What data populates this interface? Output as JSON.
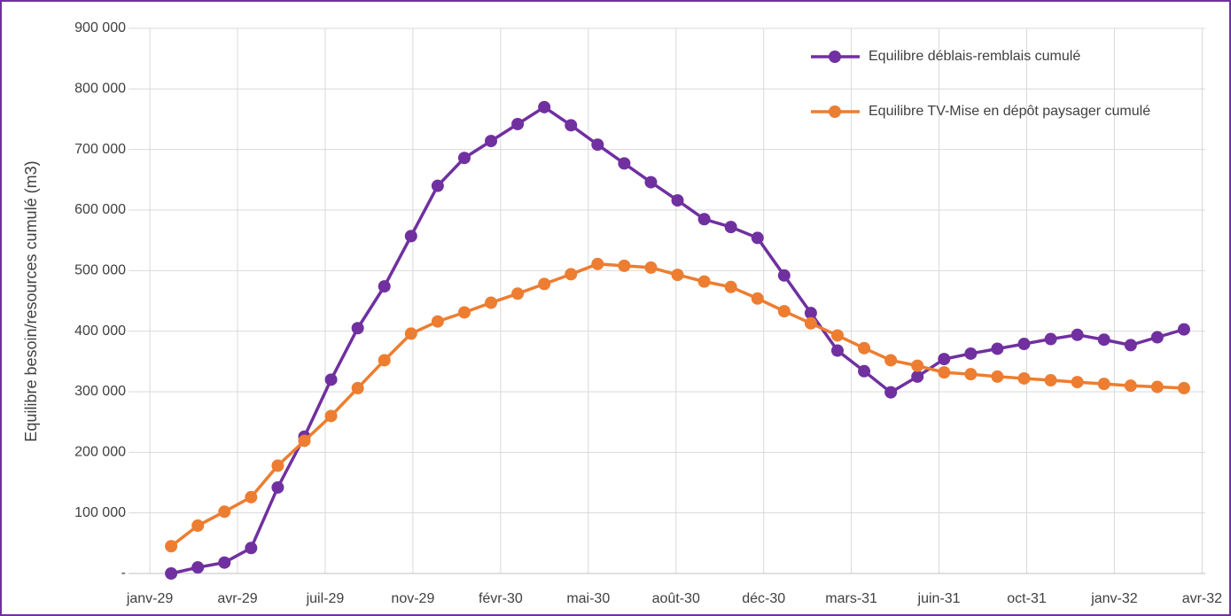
{
  "chart_data": {
    "type": "line",
    "y_label": "Equilibre besoin/resources  cumulé (m3)",
    "x": [
      1,
      2,
      3,
      4,
      5,
      6,
      7,
      8,
      9,
      10,
      11,
      12,
      13,
      14,
      15,
      16,
      17,
      18,
      19,
      20,
      21,
      22,
      23,
      24,
      25,
      26,
      27,
      28,
      29,
      30,
      31,
      32,
      33,
      34,
      35,
      36,
      37,
      38,
      39
    ],
    "series": [
      {
        "name": "Equilibre déblais-remblais cumulé",
        "color": "#7030a0",
        "values": [
          0,
          10000,
          18000,
          42000,
          142000,
          226000,
          320000,
          405000,
          474000,
          557000,
          640000,
          686000,
          714000,
          742000,
          770000,
          740000,
          708000,
          677000,
          646000,
          616000,
          585000,
          572000,
          554000,
          492000,
          430000,
          368000,
          334000,
          299000,
          325000,
          354000,
          363000,
          371000,
          379000,
          387000,
          394000,
          386000,
          377000,
          390000,
          403000
        ]
      },
      {
        "name": "Equilibre TV-Mise en dépôt paysager cumulé",
        "color": "#ed7d31",
        "values": [
          45000,
          79000,
          102000,
          126000,
          178000,
          219000,
          260000,
          306000,
          352000,
          396000,
          416000,
          431000,
          447000,
          462000,
          478000,
          494000,
          511000,
          508000,
          505000,
          493000,
          482000,
          473000,
          454000,
          433000,
          413000,
          393000,
          372000,
          352000,
          343000,
          332000,
          329000,
          325000,
          322000,
          319000,
          316000,
          313000,
          310000,
          308000,
          306000
        ]
      }
    ],
    "xlim": [
      -0.6,
      39.8
    ],
    "xticks": [
      {
        "value": 0.2,
        "label": "janv-29"
      },
      {
        "value": 3.49,
        "label": "avr-29"
      },
      {
        "value": 6.78,
        "label": "juil-29"
      },
      {
        "value": 10.07,
        "label": "nov-29"
      },
      {
        "value": 13.36,
        "label": "févr-30"
      },
      {
        "value": 16.65,
        "label": "mai-30"
      },
      {
        "value": 19.94,
        "label": "août-30"
      },
      {
        "value": 23.23,
        "label": "déc-30"
      },
      {
        "value": 26.52,
        "label": "mars-31"
      },
      {
        "value": 29.81,
        "label": "juin-31"
      },
      {
        "value": 33.1,
        "label": "oct-31"
      },
      {
        "value": 36.39,
        "label": "janv-32"
      },
      {
        "value": 39.68,
        "label": "avr-32"
      }
    ],
    "ylim": [
      0,
      900000
    ],
    "yticks": [
      {
        "value": 0,
        "label": "-"
      },
      {
        "value": 100000,
        "label": "100 000"
      },
      {
        "value": 200000,
        "label": "200 000"
      },
      {
        "value": 300000,
        "label": "300 000"
      },
      {
        "value": 400000,
        "label": "400 000"
      },
      {
        "value": 500000,
        "label": "500 000"
      },
      {
        "value": 600000,
        "label": "600 000"
      },
      {
        "value": 700000,
        "label": "700 000"
      },
      {
        "value": 800000,
        "label": "800 000"
      },
      {
        "value": 900000,
        "label": "900 000"
      }
    ],
    "grid": true,
    "legend": "top-right"
  }
}
